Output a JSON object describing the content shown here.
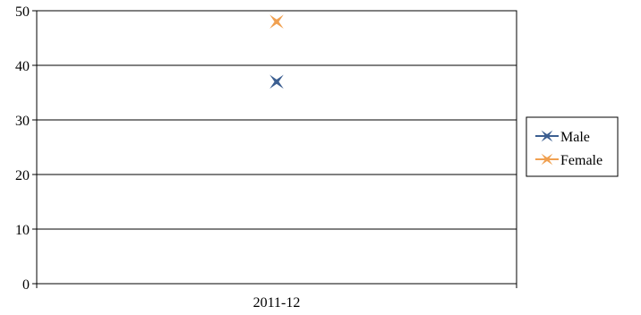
{
  "chart_data": {
    "type": "scatter",
    "categories": [
      "2011-12"
    ],
    "series": [
      {
        "name": "Male",
        "values": [
          37
        ],
        "color": "#3C5F91",
        "marker": "four-point-star"
      },
      {
        "name": "Female",
        "values": [
          48
        ],
        "color": "#F0A050",
        "marker": "four-point-star"
      }
    ],
    "title": "",
    "xlabel": "",
    "ylabel": "",
    "ylim": [
      0,
      50
    ],
    "yticks": [
      0,
      10,
      20,
      30,
      40,
      50
    ],
    "grid": true,
    "legend": "right"
  }
}
